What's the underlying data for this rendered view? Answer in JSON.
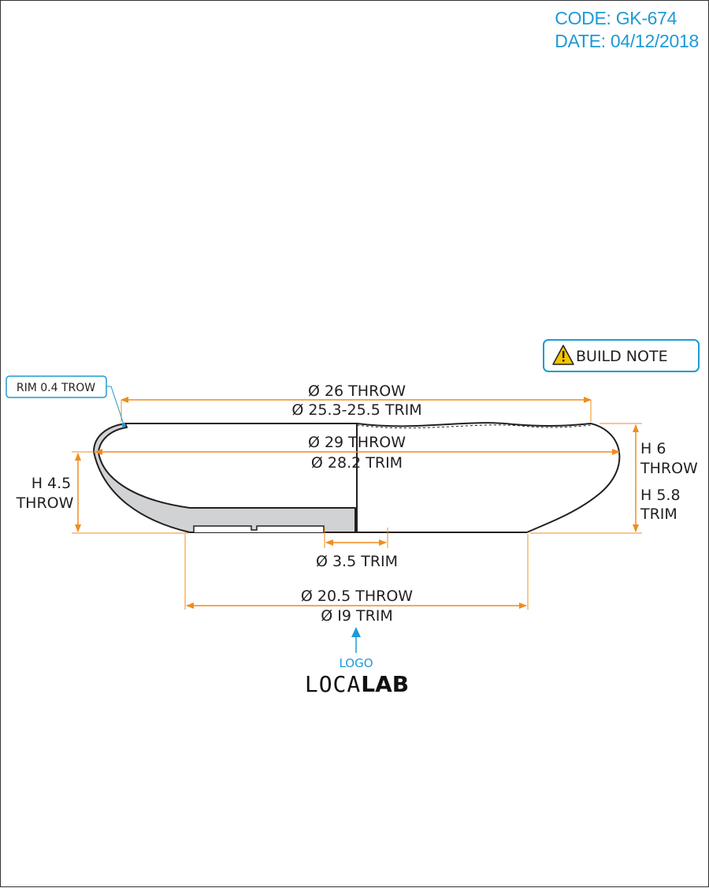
{
  "header": {
    "code": "CODE: GK-674",
    "date": "DATE: 04/12/2018"
  },
  "callouts": {
    "rim": "RIM 0.4 TROW",
    "build_note": "BUILD NOTE"
  },
  "dimensions": {
    "top_throw": "Ø 26 THROW",
    "top_trim": "Ø 25.3-25.5 TRIM",
    "max_throw": "Ø 29 THROW",
    "max_trim": "Ø 28.2 TRIM",
    "left_height_value": "H 4.5",
    "left_height_label": "THROW",
    "right_throw_value": "H 6",
    "right_throw_label": "THROW",
    "right_trim_value": "H 5.8",
    "right_trim_label": "TRIM",
    "inner_trim": "Ø 3.5 TRIM",
    "base_throw": "Ø 20.5 THROW",
    "base_trim": "Ø I9 TRIM"
  },
  "logo": {
    "label": "LOGO",
    "brand_part1": "LOCA",
    "brand_part2": "LAB"
  },
  "colors": {
    "dimension": "#f08c1e",
    "annotation": "#1e9ad6",
    "outline": "#231f20",
    "section_fill": "#d1d2d4",
    "warning": "#f5c400"
  },
  "icons": {
    "warning": "warning-triangle-icon",
    "arrow": "arrow-up-icon"
  }
}
